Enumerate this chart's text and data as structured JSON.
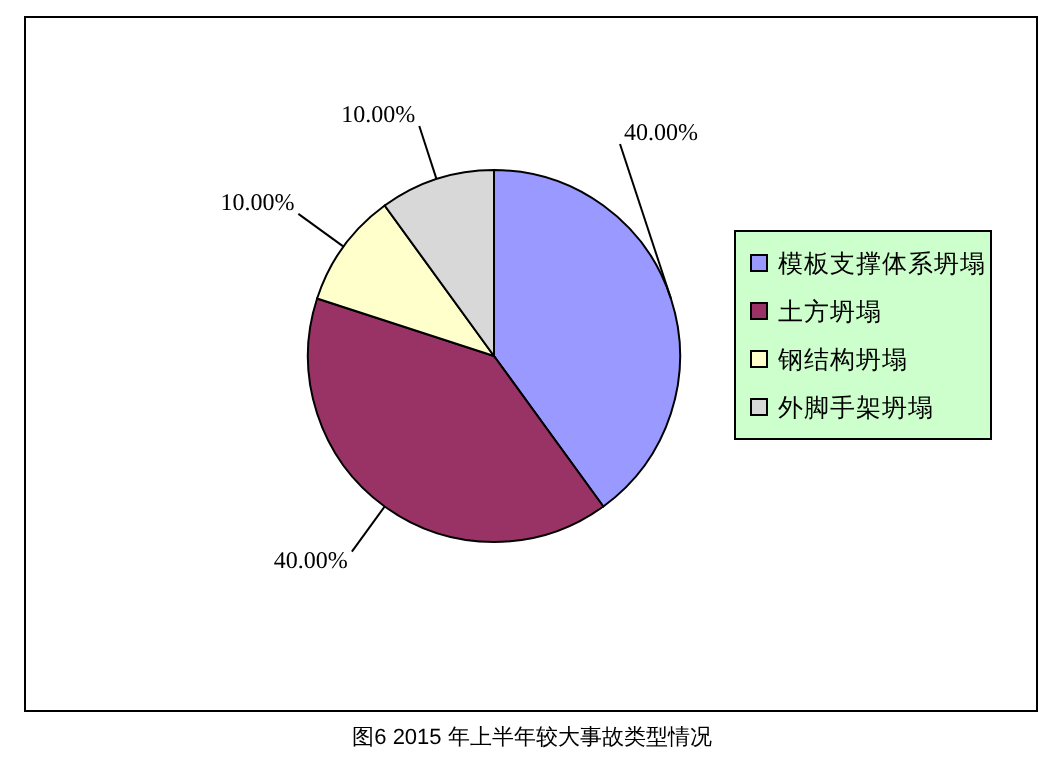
{
  "chart_data": {
    "type": "pie",
    "categories": [
      "模板支撑体系坍塌",
      "土方坍塌",
      "钢结构坍塌",
      "外脚手架坍塌"
    ],
    "values": [
      40,
      40,
      10,
      10
    ],
    "colors": [
      "#9999ff",
      "#993366",
      "#ffffcc",
      "#d8d8d8"
    ],
    "value_labels": [
      "40.00%",
      "40.00%",
      "10.00%",
      "10.00%"
    ],
    "legend": "right",
    "annotations": [
      "图6   2015 年上半年较大事故类型情况"
    ]
  }
}
